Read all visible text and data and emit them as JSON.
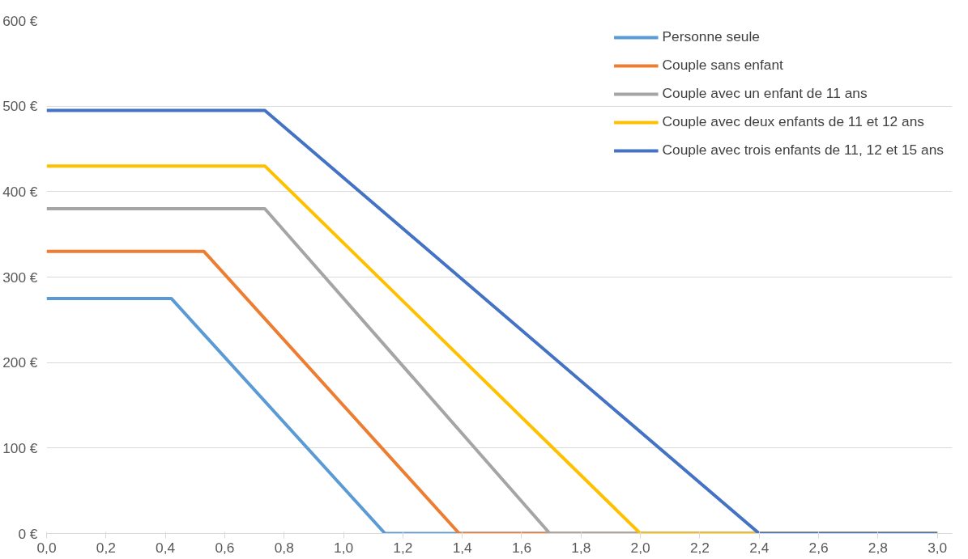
{
  "chart_data": {
    "type": "line",
    "xlim": [
      0,
      3.05
    ],
    "ylim": [
      0,
      600
    ],
    "xticks": [
      {
        "value": 0,
        "label": "0,0"
      },
      {
        "value": 0.2,
        "label": "0,2"
      },
      {
        "value": 0.4,
        "label": "0,4"
      },
      {
        "value": 0.6,
        "label": "0,6"
      },
      {
        "value": 0.8,
        "label": "0,8"
      },
      {
        "value": 1.0,
        "label": "1,0"
      },
      {
        "value": 1.2,
        "label": "1,2"
      },
      {
        "value": 1.4,
        "label": "1,4"
      },
      {
        "value": 1.6,
        "label": "1,6"
      },
      {
        "value": 1.8,
        "label": "1,8"
      },
      {
        "value": 2.0,
        "label": "2,0"
      },
      {
        "value": 2.2,
        "label": "2,2"
      },
      {
        "value": 2.4,
        "label": "2,4"
      },
      {
        "value": 2.6,
        "label": "2,6"
      },
      {
        "value": 2.8,
        "label": "2,8"
      },
      {
        "value": 3.0,
        "label": "3,0"
      }
    ],
    "yticks": [
      {
        "value": 0,
        "label": "0 €"
      },
      {
        "value": 100,
        "label": "100 €"
      },
      {
        "value": 200,
        "label": "200 €"
      },
      {
        "value": 300,
        "label": "300 €"
      },
      {
        "value": 400,
        "label": "400 €"
      },
      {
        "value": 500,
        "label": "500 €"
      },
      {
        "value": 600,
        "label": "600 €"
      }
    ],
    "grid": "y",
    "legend": "top right",
    "line_style": "solid",
    "marker": "none",
    "series": [
      {
        "name": "Personne seule",
        "color": "#5b9bd5",
        "x": [
          0,
          0.42,
          1.14,
          3.0
        ],
        "values": [
          275,
          275,
          0,
          0
        ]
      },
      {
        "name": "Couple sans enfant",
        "color": "#ed7d31",
        "x": [
          0,
          0.53,
          1.39,
          3.0
        ],
        "values": [
          330,
          330,
          0,
          0
        ]
      },
      {
        "name": "Couple avec un enfant de 11 ans",
        "color": "#a5a5a5",
        "x": [
          0,
          0.735,
          1.695,
          3.0
        ],
        "values": [
          380,
          380,
          0,
          0
        ]
      },
      {
        "name": "Couple avec deux enfants de 11 et 12 ans",
        "color": "#ffc000",
        "x": [
          0,
          0.735,
          2.0,
          3.0
        ],
        "values": [
          430,
          430,
          0,
          0
        ]
      },
      {
        "name": "Couple avec trois enfants de 11, 12 et 15 ans",
        "color": "#4472c4",
        "x": [
          0,
          0.735,
          2.4,
          3.0
        ],
        "values": [
          495,
          495,
          0,
          0
        ]
      }
    ]
  }
}
